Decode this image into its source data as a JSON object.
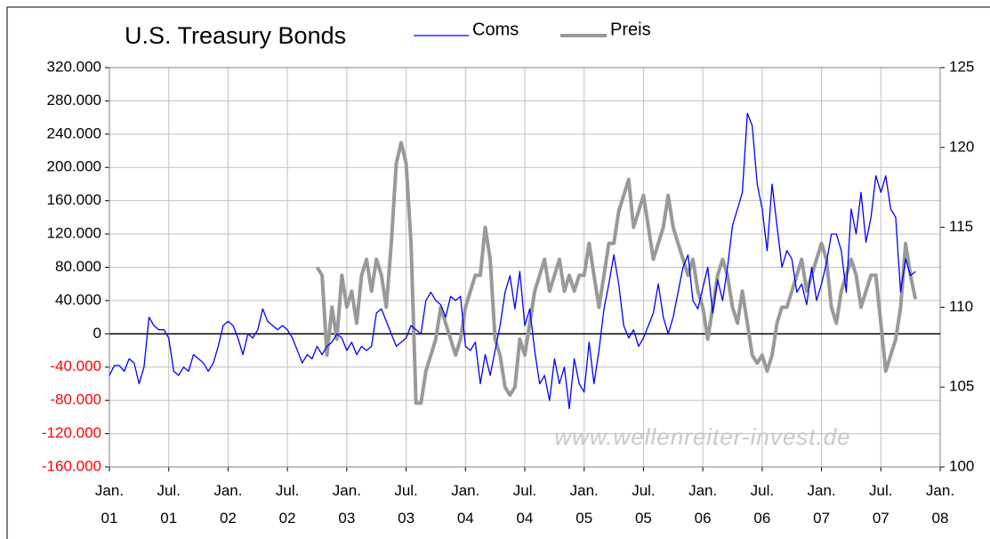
{
  "chart_data": {
    "type": "line",
    "title": "U.S. Treasury Bonds",
    "watermark": "www.wellenreiter-invest.de",
    "legend": "top",
    "grid": true,
    "zero_line": true,
    "negative_ytick_color": "#ff0000",
    "xlim": [
      0,
      84
    ],
    "xticks": [
      {
        "value": 0,
        "label": "Jan. 01"
      },
      {
        "value": 6,
        "label": "Jul. 01"
      },
      {
        "value": 12,
        "label": "Jan. 02"
      },
      {
        "value": 18,
        "label": "Jul. 02"
      },
      {
        "value": 24,
        "label": "Jan. 03"
      },
      {
        "value": 30,
        "label": "Jul. 03"
      },
      {
        "value": 36,
        "label": "Jan. 04"
      },
      {
        "value": 42,
        "label": "Jul. 04"
      },
      {
        "value": 48,
        "label": "Jan. 05"
      },
      {
        "value": 54,
        "label": "Jul. 05"
      },
      {
        "value": 60,
        "label": "Jan. 06"
      },
      {
        "value": 66,
        "label": "Jul. 06"
      },
      {
        "value": 72,
        "label": "Jan. 07"
      },
      {
        "value": 78,
        "label": "Jul. 07"
      },
      {
        "value": 84,
        "label": "Jan. 08"
      }
    ],
    "ylim": [
      -160000,
      320000
    ],
    "yticks": [
      {
        "value": -160000,
        "label": "-160.000"
      },
      {
        "value": -120000,
        "label": "-120.000"
      },
      {
        "value": -80000,
        "label": "-80.000"
      },
      {
        "value": -40000,
        "label": "-40.000"
      },
      0,
      {
        "value": 40000,
        "label": "40.000"
      },
      {
        "value": 80000,
        "label": "80.000"
      },
      {
        "value": 120000,
        "label": "120.000"
      },
      {
        "value": 160000,
        "label": "160.000"
      },
      {
        "value": 200000,
        "label": "200.000"
      },
      {
        "value": 240000,
        "label": "240.000"
      },
      {
        "value": 280000,
        "label": "280.000"
      },
      {
        "value": 320000,
        "label": "320.000"
      }
    ],
    "y2lim": [
      100,
      125
    ],
    "y2ticks": [
      100,
      105,
      110,
      115,
      120,
      125
    ],
    "series": [
      {
        "name": "Coms",
        "color": "#0000ff",
        "x": [
          0,
          0.5,
          1,
          1.5,
          2,
          2.5,
          3,
          3.5,
          4,
          4.5,
          5,
          5.5,
          6,
          6.5,
          7,
          7.5,
          8,
          8.5,
          9,
          9.5,
          10,
          10.5,
          11,
          11.5,
          12,
          12.5,
          13,
          13.5,
          14,
          14.5,
          15,
          15.5,
          16,
          16.5,
          17,
          17.5,
          18,
          18.5,
          19,
          19.5,
          20,
          20.5,
          21,
          21.5,
          22,
          22.5,
          23,
          23.5,
          24,
          24.5,
          25,
          25.5,
          26,
          26.5,
          27,
          27.5,
          28,
          28.5,
          29,
          29.5,
          30,
          30.5,
          31,
          31.5,
          32,
          32.5,
          33,
          33.5,
          34,
          34.5,
          35,
          35.5,
          36,
          36.5,
          37,
          37.5,
          38,
          38.5,
          39,
          39.5,
          40,
          40.5,
          41,
          41.5,
          42,
          42.5,
          43,
          43.5,
          44,
          44.5,
          45,
          45.5,
          46,
          46.5,
          47,
          47.5,
          48,
          48.5,
          49,
          49.5,
          50,
          50.5,
          51,
          51.5,
          52,
          52.5,
          53,
          53.5,
          54,
          54.5,
          55,
          55.5,
          56,
          56.5,
          57,
          57.5,
          58,
          58.5,
          59,
          59.5,
          60,
          60.5,
          61,
          61.5,
          62,
          62.5,
          63,
          63.5,
          64,
          64.5,
          65,
          65.5,
          66,
          66.5,
          67,
          67.5,
          68,
          68.5,
          69,
          69.5,
          70,
          70.5,
          71,
          71.5,
          72,
          72.5,
          73,
          73.5,
          74,
          74.5,
          75,
          75.5,
          76,
          76.5,
          77,
          77.5,
          78,
          78.5,
          79,
          79.5,
          80,
          80.5,
          81,
          81.5
        ],
        "values": [
          -50000,
          -38000,
          -38000,
          -45000,
          -30000,
          -35000,
          -60000,
          -40000,
          20000,
          10000,
          5000,
          5000,
          -5000,
          -45000,
          -50000,
          -40000,
          -45000,
          -25000,
          -30000,
          -35000,
          -45000,
          -35000,
          -15000,
          10000,
          15000,
          10000,
          -5000,
          -25000,
          0,
          -5000,
          5000,
          30000,
          15000,
          10000,
          5000,
          10000,
          5000,
          -5000,
          -20000,
          -35000,
          -25000,
          -30000,
          -15000,
          -25000,
          -15000,
          -10000,
          0,
          -5000,
          -20000,
          -10000,
          -25000,
          -15000,
          -20000,
          -15000,
          25000,
          30000,
          15000,
          0,
          -15000,
          -10000,
          -5000,
          10000,
          5000,
          0,
          40000,
          50000,
          40000,
          35000,
          20000,
          45000,
          40000,
          45000,
          -15000,
          -20000,
          -10000,
          -60000,
          -25000,
          -50000,
          -20000,
          10000,
          50000,
          70000,
          30000,
          75000,
          10000,
          30000,
          -20000,
          -60000,
          -50000,
          -80000,
          -30000,
          -60000,
          -40000,
          -90000,
          -30000,
          -60000,
          -70000,
          -10000,
          -60000,
          -20000,
          30000,
          60000,
          95000,
          60000,
          10000,
          -5000,
          5000,
          -15000,
          -5000,
          10000,
          25000,
          60000,
          20000,
          0,
          20000,
          50000,
          80000,
          95000,
          40000,
          30000,
          55000,
          80000,
          25000,
          65000,
          40000,
          80000,
          130000,
          150000,
          170000,
          265000,
          250000,
          180000,
          150000,
          100000,
          180000,
          130000,
          80000,
          100000,
          90000,
          50000,
          60000,
          35000,
          80000,
          40000,
          60000,
          85000,
          120000,
          120000,
          100000,
          50000,
          150000,
          120000,
          170000,
          110000,
          140000,
          190000,
          170000,
          190000,
          150000,
          140000,
          50000,
          90000,
          70000,
          75000
        ]
      },
      {
        "name": "Preis",
        "color": "#999999",
        "axis": "y2",
        "x": [
          21,
          21.5,
          22,
          22.5,
          23,
          23.5,
          24,
          24.5,
          25,
          25.5,
          26,
          26.5,
          27,
          27.5,
          28,
          28.5,
          29,
          29.5,
          30,
          30.5,
          31,
          31.5,
          32,
          32.5,
          33,
          33.5,
          34,
          34.5,
          35,
          35.5,
          36,
          36.5,
          37,
          37.5,
          38,
          38.5,
          39,
          39.5,
          40,
          40.5,
          41,
          41.5,
          42,
          42.5,
          43,
          43.5,
          44,
          44.5,
          45,
          45.5,
          46,
          46.5,
          47,
          47.5,
          48,
          48.5,
          49,
          49.5,
          50,
          50.5,
          51,
          51.5,
          52,
          52.5,
          53,
          53.5,
          54,
          54.5,
          55,
          55.5,
          56,
          56.5,
          57,
          57.5,
          58,
          58.5,
          59,
          59.5,
          60,
          60.5,
          61,
          61.5,
          62,
          62.5,
          63,
          63.5,
          64,
          64.5,
          65,
          65.5,
          66,
          66.5,
          67,
          67.5,
          68,
          68.5,
          69,
          69.5,
          70,
          70.5,
          71,
          71.5,
          72,
          72.5,
          73,
          73.5,
          74,
          74.5,
          75,
          75.5,
          76,
          76.5,
          77,
          77.5,
          78,
          78.5,
          79,
          79.5,
          80,
          80.5,
          81,
          81.5
        ],
        "values": [
          112.5,
          112,
          107,
          110,
          108,
          112,
          110,
          111,
          109,
          112,
          113,
          111,
          113,
          112,
          110,
          114,
          119,
          120.3,
          119,
          114,
          104,
          104,
          106,
          107,
          108,
          110,
          109,
          108,
          107,
          108,
          110,
          111,
          112,
          112,
          115,
          113,
          108,
          107,
          105,
          104.5,
          105,
          108,
          107,
          109,
          111,
          112,
          113,
          111,
          112,
          113,
          111,
          112,
          111,
          112,
          112,
          114,
          112,
          110,
          112,
          114,
          114,
          116,
          117,
          118,
          115,
          116,
          117,
          115,
          113,
          114,
          115,
          117,
          115,
          114,
          113,
          112,
          113,
          111,
          110,
          108,
          110,
          112,
          113,
          112,
          110,
          109,
          111,
          109,
          107,
          106.5,
          107,
          106,
          107,
          109,
          110,
          110,
          111,
          112,
          113,
          111,
          112,
          113,
          114,
          113,
          110,
          109,
          111,
          112,
          113,
          112,
          110,
          111,
          112,
          112,
          109,
          106,
          107,
          108,
          110,
          114,
          112,
          110.5
        ]
      }
    ]
  }
}
